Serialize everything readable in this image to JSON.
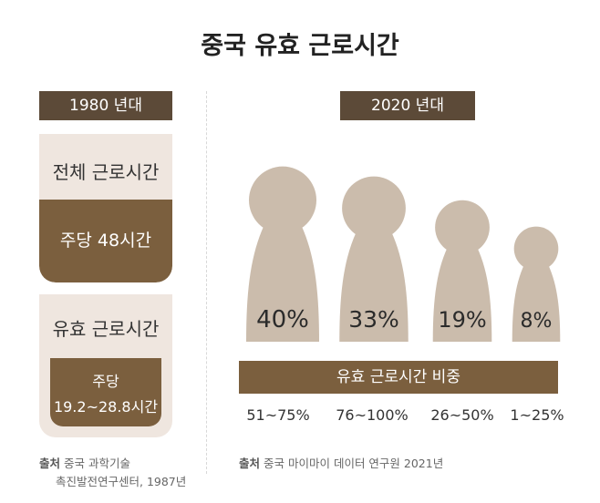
{
  "title": "중국 유효 근로시간",
  "left": {
    "era_tag": "1980 년대",
    "total": {
      "label": "전체 근로시간",
      "value": "주당 48시간"
    },
    "effective": {
      "label": "유효 근로시간",
      "value_line1": "주당",
      "value_line2": "19.2~28.8시간"
    },
    "source_bold": "출처",
    "source_line1": "중국 과학기술",
    "source_line2": "촉진발전연구센터, 1987년"
  },
  "right": {
    "era_tag": "2020 년대",
    "banner": "유효 근로시간 비중",
    "source_bold": "출처",
    "source_text": "중국 마이마이 데이터 연구원 2021년"
  },
  "colors": {
    "figure": "#cbbcac",
    "dark_brown": "#5c4a38",
    "brown": "#7b5f3e",
    "card_bg": "#efe6df"
  },
  "chart_data": {
    "type": "bar",
    "title": "",
    "categories": [
      "51~75%",
      "76~100%",
      "26~50%",
      "1~25%"
    ],
    "values": [
      40,
      33,
      19,
      8
    ],
    "value_labels": [
      "40%",
      "33%",
      "19%",
      "8%"
    ],
    "unit": "%"
  }
}
